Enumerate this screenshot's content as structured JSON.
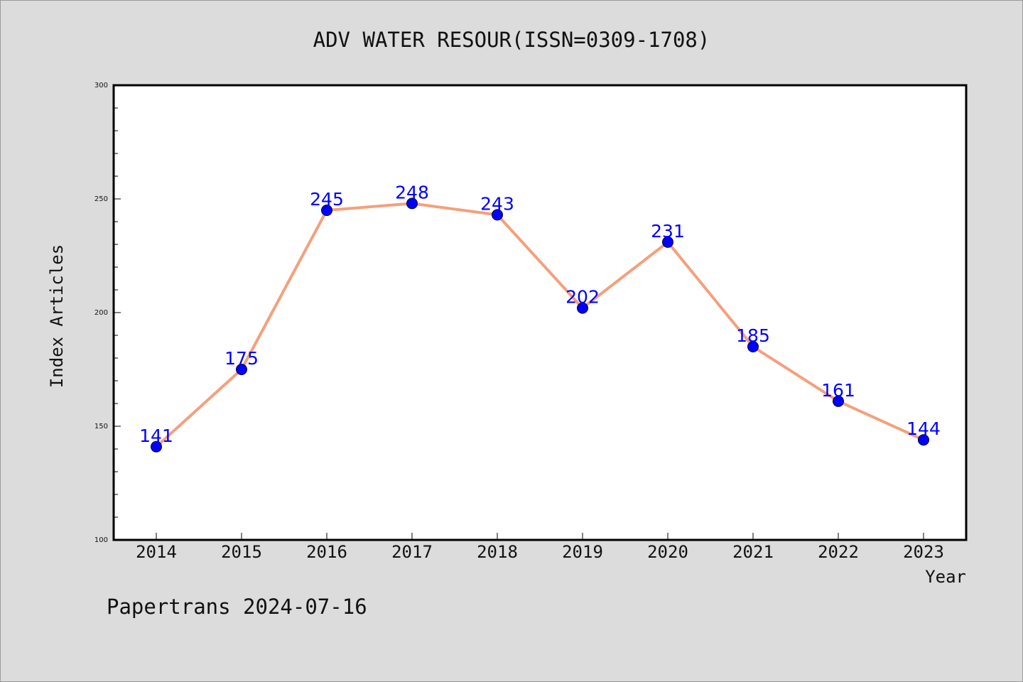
{
  "chart_data": {
    "type": "line",
    "title": "ADV WATER RESOUR(ISSN=0309-1708)",
    "xlabel": "Year",
    "ylabel": "Index Articles",
    "categories": [
      "2014",
      "2015",
      "2016",
      "2017",
      "2018",
      "2019",
      "2020",
      "2021",
      "2022",
      "2023"
    ],
    "values": [
      141,
      175,
      245,
      248,
      243,
      202,
      231,
      185,
      161,
      144
    ],
    "ylim": [
      100,
      300
    ],
    "yticks": [
      100,
      150,
      200,
      250,
      300
    ],
    "grid": false,
    "legend": "none",
    "line_color": "#f4a07c",
    "marker_color": "#0000ff",
    "label_color": "#0000ff"
  },
  "footer": "Papertrans 2024-07-16"
}
